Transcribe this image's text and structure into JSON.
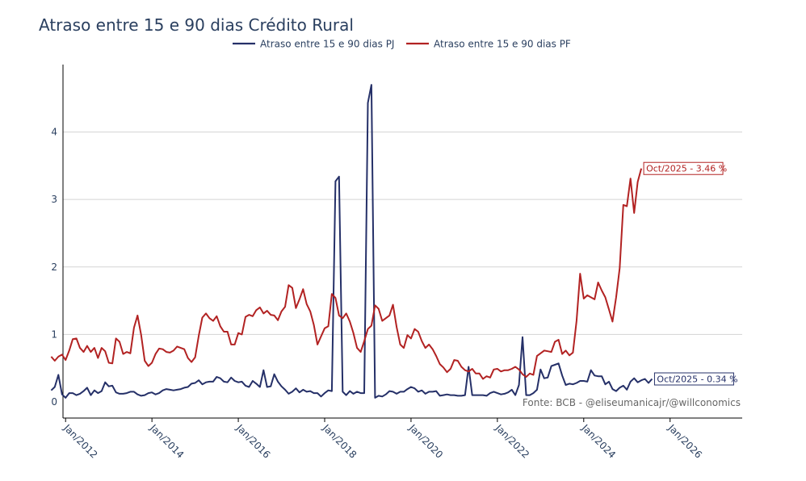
{
  "chart_data": {
    "type": "line",
    "title": "Atraso entre 15 e 90 dias Crédito Rural",
    "xlabel": "",
    "ylabel": "",
    "x_start": "2011-09",
    "x_end": "2025-10",
    "xlim_years": [
      2011.94,
      2027.67
    ],
    "ylim": [
      -0.24,
      5.0
    ],
    "y_ticks": [
      0,
      1,
      2,
      3,
      4
    ],
    "y_tick_labels": [
      "0",
      "1",
      "2",
      "3",
      "4"
    ],
    "x_ticks": [
      2012,
      2014,
      2016,
      2018,
      2020,
      2022,
      2024,
      2026
    ],
    "x_tick_labels": [
      "Jan/2012",
      "Jan/2014",
      "Jan/2016",
      "Jan/2018",
      "Jan/2020",
      "Jan/2022",
      "Jan/2024",
      "Jan/2026"
    ],
    "grid": "horizontal",
    "legend_position": "top-center",
    "source_text": "Fonte: BCB - @eliseumanicajr/@willconomics",
    "series": [
      {
        "name": "Atraso entre 15 e 90 dias PJ",
        "color": "#253068",
        "end_label": "Oct/2025 - 0.34 %",
        "values": [
          0.17,
          0.22,
          0.4,
          0.11,
          0.06,
          0.13,
          0.13,
          0.1,
          0.12,
          0.16,
          0.21,
          0.1,
          0.17,
          0.13,
          0.16,
          0.29,
          0.23,
          0.24,
          0.14,
          0.12,
          0.12,
          0.13,
          0.15,
          0.15,
          0.11,
          0.09,
          0.1,
          0.13,
          0.14,
          0.11,
          0.13,
          0.17,
          0.19,
          0.18,
          0.17,
          0.18,
          0.19,
          0.21,
          0.22,
          0.27,
          0.28,
          0.32,
          0.26,
          0.29,
          0.3,
          0.3,
          0.37,
          0.35,
          0.3,
          0.29,
          0.36,
          0.31,
          0.29,
          0.3,
          0.24,
          0.22,
          0.31,
          0.27,
          0.22,
          0.47,
          0.22,
          0.23,
          0.41,
          0.3,
          0.23,
          0.18,
          0.12,
          0.15,
          0.2,
          0.14,
          0.18,
          0.15,
          0.16,
          0.13,
          0.13,
          0.08,
          0.13,
          0.17,
          0.16,
          3.27,
          3.34,
          0.15,
          0.1,
          0.16,
          0.12,
          0.15,
          0.13,
          0.13,
          4.43,
          4.7,
          0.06,
          0.09,
          0.08,
          0.11,
          0.16,
          0.15,
          0.12,
          0.15,
          0.15,
          0.19,
          0.22,
          0.2,
          0.15,
          0.17,
          0.12,
          0.15,
          0.15,
          0.16,
          0.09,
          0.1,
          0.11,
          0.1,
          0.1,
          0.09,
          0.09,
          0.1,
          0.52,
          0.1,
          0.1,
          0.1,
          0.1,
          0.09,
          0.13,
          0.15,
          0.13,
          0.11,
          0.12,
          0.14,
          0.18,
          0.1,
          0.25,
          0.96,
          0.1,
          0.1,
          0.13,
          0.18,
          0.48,
          0.35,
          0.36,
          0.53,
          0.55,
          0.57,
          0.39,
          0.25,
          0.27,
          0.26,
          0.28,
          0.31,
          0.31,
          0.3,
          0.47,
          0.39,
          0.38,
          0.38,
          0.26,
          0.3,
          0.19,
          0.16,
          0.21,
          0.24,
          0.18,
          0.3,
          0.35,
          0.29,
          0.32,
          0.34,
          0.28,
          0.34
        ]
      },
      {
        "name": "Atraso entre 15 e 90 dias PF",
        "color": "#b22222",
        "end_label": "Oct/2025 - 3.46 %",
        "values": [
          0.67,
          0.61,
          0.67,
          0.7,
          0.62,
          0.76,
          0.93,
          0.94,
          0.8,
          0.74,
          0.83,
          0.74,
          0.8,
          0.65,
          0.8,
          0.75,
          0.58,
          0.57,
          0.94,
          0.89,
          0.71,
          0.74,
          0.72,
          1.1,
          1.28,
          0.99,
          0.61,
          0.53,
          0.58,
          0.71,
          0.79,
          0.78,
          0.74,
          0.73,
          0.76,
          0.82,
          0.8,
          0.78,
          0.65,
          0.59,
          0.66,
          0.98,
          1.25,
          1.31,
          1.24,
          1.2,
          1.27,
          1.12,
          1.04,
          1.04,
          0.85,
          0.85,
          1.02,
          1.0,
          1.26,
          1.29,
          1.27,
          1.36,
          1.4,
          1.31,
          1.35,
          1.29,
          1.28,
          1.21,
          1.34,
          1.41,
          1.73,
          1.69,
          1.39,
          1.52,
          1.67,
          1.45,
          1.34,
          1.14,
          0.85,
          0.97,
          1.09,
          1.12,
          1.6,
          1.54,
          1.28,
          1.24,
          1.31,
          1.19,
          1.02,
          0.8,
          0.74,
          0.9,
          1.08,
          1.13,
          1.43,
          1.38,
          1.2,
          1.24,
          1.28,
          1.44,
          1.11,
          0.85,
          0.8,
          0.99,
          0.94,
          1.08,
          1.04,
          0.9,
          0.8,
          0.85,
          0.78,
          0.68,
          0.56,
          0.51,
          0.44,
          0.49,
          0.62,
          0.61,
          0.52,
          0.47,
          0.45,
          0.49,
          0.42,
          0.42,
          0.34,
          0.38,
          0.36,
          0.48,
          0.49,
          0.45,
          0.47,
          0.47,
          0.49,
          0.52,
          0.48,
          0.41,
          0.37,
          0.42,
          0.4,
          0.68,
          0.72,
          0.76,
          0.75,
          0.74,
          0.89,
          0.92,
          0.71,
          0.76,
          0.69,
          0.73,
          1.2,
          1.9,
          1.53,
          1.58,
          1.55,
          1.52,
          1.77,
          1.65,
          1.55,
          1.37,
          1.19,
          1.55,
          1.98,
          2.92,
          2.9,
          3.31,
          2.8,
          3.26,
          3.46
        ]
      }
    ]
  }
}
